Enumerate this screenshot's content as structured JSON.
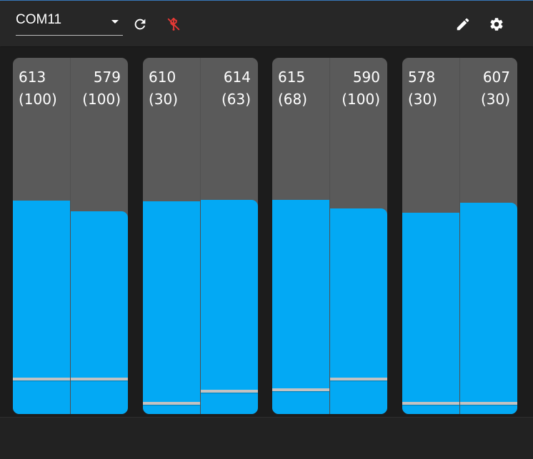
{
  "toolbar": {
    "port_select": {
      "value": "COM11"
    },
    "icons": {
      "refresh": "refresh-icon",
      "disconnected": "usb-off-icon",
      "edit": "pencil-icon",
      "settings": "gear-icon"
    },
    "colors": {
      "disconnected_icon": "#e53935",
      "icon": "#ffffff"
    }
  },
  "colors": {
    "fill": "#03a9f4",
    "track": "#5a5a5a",
    "thumb": "#c2c2c2"
  },
  "groups": [
    {
      "sliders": [
        {
          "value": "613",
          "threshold": "(100)",
          "level": 0.6,
          "threshold_level": 0.095
        },
        {
          "value": "579",
          "threshold": "(100)",
          "level": 0.57,
          "threshold_level": 0.095
        }
      ]
    },
    {
      "sliders": [
        {
          "value": "610",
          "threshold": "(30)",
          "level": 0.598,
          "threshold_level": 0.027
        },
        {
          "value": "614",
          "threshold": "(63)",
          "level": 0.602,
          "threshold_level": 0.06
        }
      ]
    },
    {
      "sliders": [
        {
          "value": "615",
          "threshold": "(68)",
          "level": 0.602,
          "threshold_level": 0.065
        },
        {
          "value": "590",
          "threshold": "(100)",
          "level": 0.578,
          "threshold_level": 0.095
        }
      ]
    },
    {
      "sliders": [
        {
          "value": "578",
          "threshold": "(30)",
          "level": 0.565,
          "threshold_level": 0.027
        },
        {
          "value": "607",
          "threshold": "(30)",
          "level": 0.594,
          "threshold_level": 0.027
        }
      ]
    }
  ]
}
